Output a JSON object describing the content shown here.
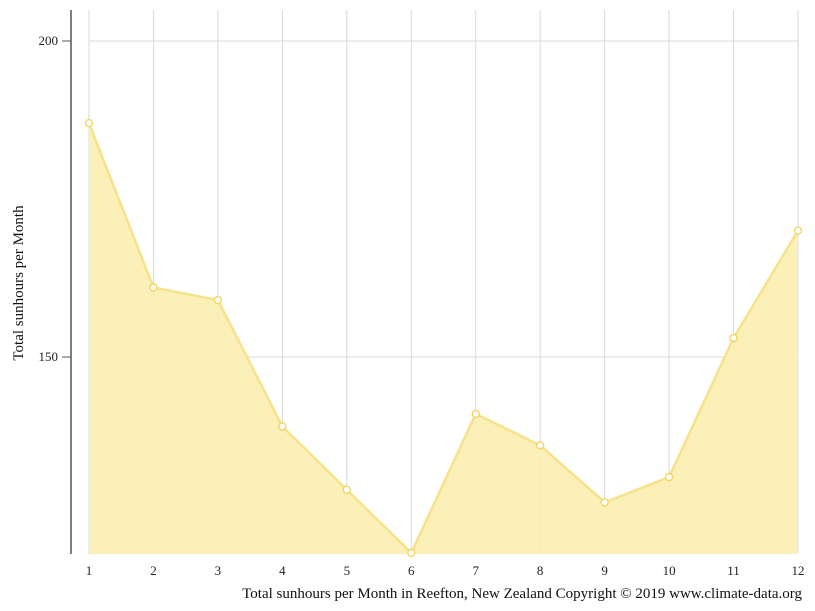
{
  "chart_data": {
    "type": "area",
    "x": [
      1,
      2,
      3,
      4,
      5,
      6,
      7,
      8,
      9,
      10,
      11,
      12
    ],
    "x_tick_labels": [
      "1",
      "2",
      "3",
      "4",
      "5",
      "6",
      "7",
      "8",
      "9",
      "10",
      "11",
      "12"
    ],
    "series": [
      {
        "values": [
          187,
          161,
          159,
          139,
          129,
          119,
          141,
          136,
          127,
          131,
          153,
          170
        ]
      }
    ],
    "ylabel": "Total sunhours per Month",
    "y_ticks": [
      150,
      200
    ],
    "ylim": [
      119,
      205
    ],
    "xlim": [
      1,
      12
    ],
    "grid": true,
    "legend": "none",
    "caption": "Total sunhours per Month in Reefton, New Zealand Copyright © 2019 www.climate-data.org",
    "colors": {
      "fill": "#f9eeb0",
      "line": "#f7e28a",
      "marker_fill": "#ffffff",
      "marker_stroke": "#f3d35a",
      "grid": "#d9d9d9",
      "axis": "#555555"
    }
  }
}
